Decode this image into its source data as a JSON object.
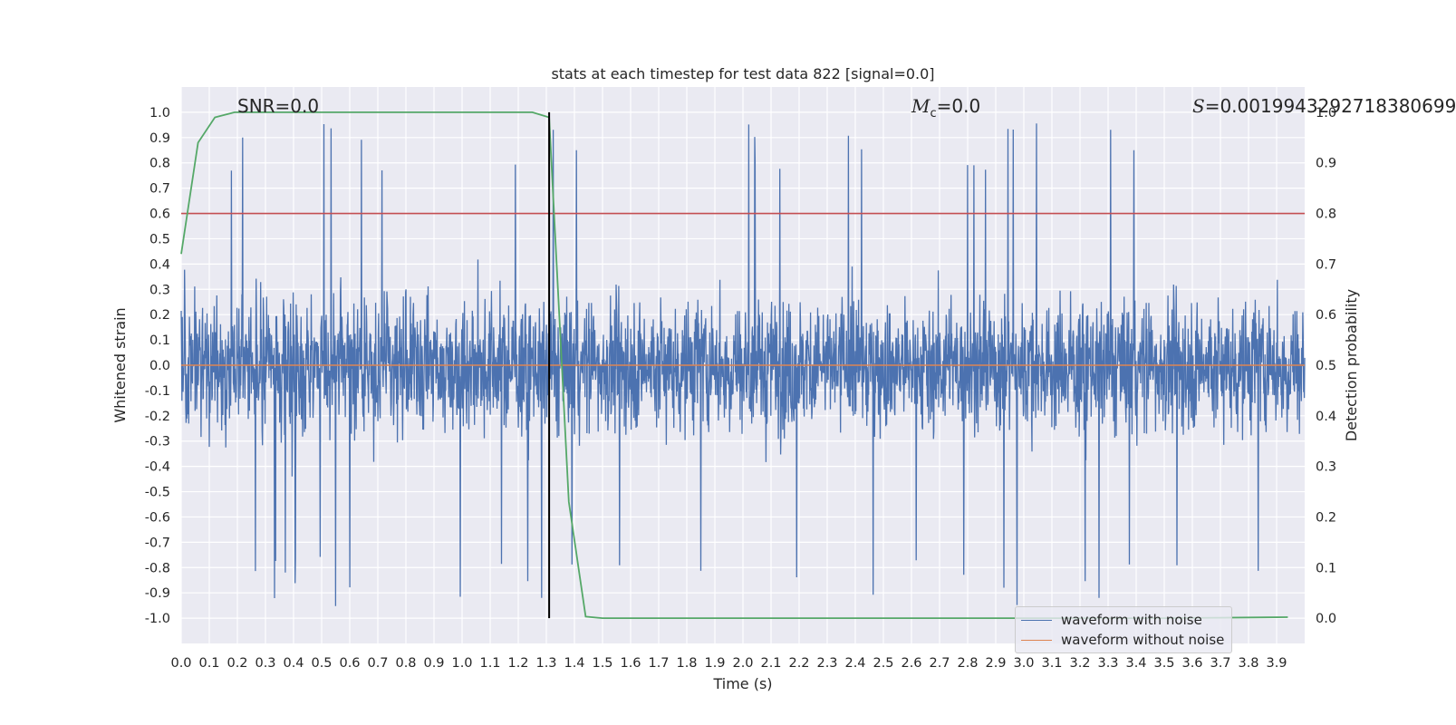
{
  "chart_data": {
    "type": "line",
    "title": "stats at each timestep for test data 822 [signal=0.0]",
    "xlabel": "Time (s)",
    "ylabel": "Whitened strain",
    "y2label": "Detection probability",
    "xlim": [
      0.0,
      4.0
    ],
    "ylim": [
      -1.1,
      1.1
    ],
    "y2lim": [
      -0.05,
      1.05
    ],
    "x_ticks": [
      "0.0",
      "0.1",
      "0.2",
      "0.3",
      "0.4",
      "0.5",
      "0.6",
      "0.7",
      "0.8",
      "0.9",
      "1.0",
      "1.1",
      "1.2",
      "1.3",
      "1.4",
      "1.5",
      "1.6",
      "1.7",
      "1.8",
      "1.9",
      "2.0",
      "2.1",
      "2.2",
      "2.3",
      "2.4",
      "2.5",
      "2.6",
      "2.7",
      "2.8",
      "2.9",
      "3.0",
      "3.1",
      "3.2",
      "3.3",
      "3.4",
      "3.5",
      "3.6",
      "3.7",
      "3.8",
      "3.9"
    ],
    "y_ticks": [
      "1.0",
      "0.9",
      "0.8",
      "0.7",
      "0.6",
      "0.5",
      "0.4",
      "0.3",
      "0.2",
      "0.1",
      "0.0",
      "-0.1",
      "-0.2",
      "-0.3",
      "-0.4",
      "-0.5",
      "-0.6",
      "-0.7",
      "-0.8",
      "-0.9",
      "-1.0"
    ],
    "y2_ticks": [
      "1.0",
      "0.9",
      "0.8",
      "0.7",
      "0.6",
      "0.5",
      "0.4",
      "0.3",
      "0.2",
      "0.1",
      "0.0"
    ],
    "grid": true,
    "legend_position": "lower right",
    "series": [
      {
        "name": "waveform with noise",
        "color": "#4c72b0",
        "axis": "left",
        "note": "dense noise trace, amplitude mostly within ±0.5 with spikes near ±1.0"
      },
      {
        "name": "waveform without noise",
        "color": "#dd8452",
        "axis": "left",
        "x": [
          0.0,
          4.0
        ],
        "y": [
          0.0,
          0.0
        ]
      },
      {
        "name": "",
        "color": "#55a868",
        "axis": "right",
        "x": [
          0.0,
          0.06,
          0.12,
          0.19,
          0.25,
          0.31,
          0.38,
          0.44,
          0.5,
          0.56,
          0.62,
          0.69,
          0.75,
          0.81,
          0.88,
          0.94,
          1.0,
          1.06,
          1.12,
          1.19,
          1.25,
          1.31,
          1.38,
          1.44,
          1.5,
          1.56,
          1.62,
          1.69,
          2.0,
          2.5,
          3.0,
          3.5,
          3.94
        ],
        "y": [
          0.72,
          0.94,
          0.99,
          1.0,
          1.0,
          1.0,
          1.0,
          1.0,
          1.0,
          1.0,
          1.0,
          1.0,
          1.0,
          1.0,
          1.0,
          1.0,
          1.0,
          1.0,
          1.0,
          1.0,
          1.0,
          0.99,
          0.23,
          0.003,
          0.0,
          0.0,
          0.0,
          0.0,
          0.0,
          0.0,
          0.0,
          0.0,
          0.002
        ]
      }
    ],
    "threshold_line": {
      "y": 0.8,
      "color": "#c44e52"
    },
    "vertical_marker": {
      "x": 1.31,
      "color": "#000000"
    },
    "annotations": {
      "snr": "SNR=0.0",
      "mc_symbol": "M",
      "mc_sub": "c",
      "mc_value": "=0.0",
      "s_symbol": "S",
      "s_value": "=0.0019943292718380699"
    }
  }
}
